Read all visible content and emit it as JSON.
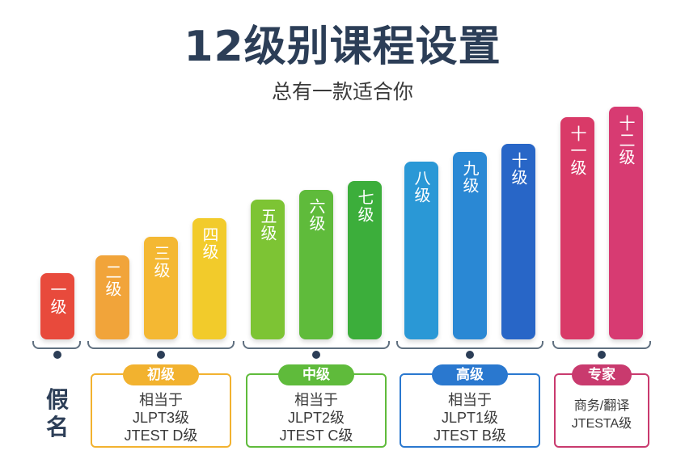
{
  "title": "12级别课程设置",
  "subtitle": "总有一款适合你",
  "side_label": "假名",
  "levels": [
    {
      "label": "一级",
      "color": "#e84a3c"
    },
    {
      "label": "二级",
      "color": "#f1a43a"
    },
    {
      "label": "三级",
      "color": "#f4b833"
    },
    {
      "label": "四级",
      "color": "#f2cb2b"
    },
    {
      "label": "五级",
      "color": "#7dc434"
    },
    {
      "label": "六级",
      "color": "#5fbb3b"
    },
    {
      "label": "七级",
      "color": "#3cae3b"
    },
    {
      "label": "八级",
      "color": "#2a98d6"
    },
    {
      "label": "九级",
      "color": "#2a88d4"
    },
    {
      "label": "十级",
      "color": "#2866c7"
    },
    {
      "label": "十一级",
      "color": "#d93a68"
    },
    {
      "label": "十二级",
      "color": "#d73b72"
    }
  ],
  "groups": [
    {
      "name": "初级",
      "lines": [
        "相当于",
        "JLPT3级",
        "JTEST D级"
      ],
      "color": "#f2b22f"
    },
    {
      "name": "中级",
      "lines": [
        "相当于",
        "JLPT2级",
        "JTEST C级"
      ],
      "color": "#5fbb3b"
    },
    {
      "name": "高级",
      "lines": [
        "相当于",
        "JLPT1级",
        "JTEST B级"
      ],
      "color": "#2a78cf"
    },
    {
      "name": "专家",
      "lines": [
        "商务/翻译",
        "JTESTA级"
      ],
      "color": "#c93a6e"
    }
  ]
}
